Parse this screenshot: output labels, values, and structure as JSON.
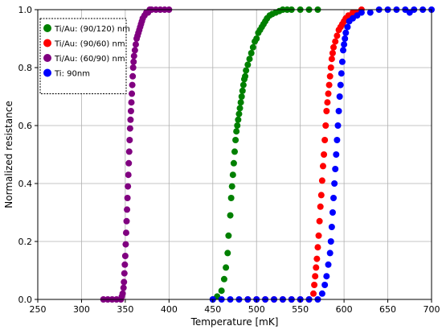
{
  "chart_data": {
    "type": "scatter",
    "xlabel": "Temperature [mK]",
    "ylabel": "Normalized resistance",
    "xlim": [
      250,
      700
    ],
    "ylim": [
      0,
      1.0
    ],
    "x_ticks": [
      "250",
      "300",
      "350",
      "400",
      "450",
      "500",
      "550",
      "600",
      "650",
      "700"
    ],
    "y_ticks": [
      "0.0",
      "0.2",
      "0.4",
      "0.6",
      "0.8",
      "1.0"
    ],
    "grid": true,
    "legend_position": "top-left",
    "series": [
      {
        "name": "Ti/Au: (90/120) nm",
        "color": "#008000",
        "x": [
          450,
          455,
          460,
          463,
          465,
          467,
          468,
          470,
          471,
          472,
          473,
          474,
          475,
          476,
          477,
          478,
          479,
          480,
          481,
          482,
          483,
          484,
          485,
          486,
          487,
          488,
          490,
          492,
          494,
          496,
          498,
          500,
          502,
          504,
          506,
          508,
          510,
          512,
          515,
          518,
          522,
          526,
          530,
          535,
          540,
          550,
          560,
          570
        ],
        "y": [
          0.0,
          0.01,
          0.03,
          0.07,
          0.11,
          0.16,
          0.22,
          0.29,
          0.35,
          0.39,
          0.43,
          0.47,
          0.51,
          0.55,
          0.58,
          0.6,
          0.62,
          0.64,
          0.66,
          0.68,
          0.7,
          0.72,
          0.74,
          0.76,
          0.77,
          0.79,
          0.81,
          0.83,
          0.85,
          0.87,
          0.89,
          0.9,
          0.92,
          0.93,
          0.94,
          0.95,
          0.96,
          0.97,
          0.98,
          0.985,
          0.99,
          0.995,
          1.0,
          1.0,
          1.0,
          1.0,
          1.0,
          1.0
        ]
      },
      {
        "name": "Ti/Au: (90/60) nm",
        "color": "#ff0000",
        "x": [
          490,
          500,
          510,
          520,
          530,
          540,
          550,
          560,
          565,
          566,
          567,
          568,
          569,
          570,
          571,
          572,
          573,
          574,
          575,
          576,
          577,
          578,
          579,
          580,
          581,
          582,
          583,
          584,
          585,
          586,
          587,
          588,
          590,
          592,
          594,
          596,
          598,
          600,
          602,
          605,
          610,
          615,
          620
        ],
        "y": [
          0.0,
          0.0,
          0.0,
          0.0,
          0.0,
          0.0,
          0.0,
          0.0,
          0.02,
          0.05,
          0.08,
          0.11,
          0.14,
          0.18,
          0.22,
          0.27,
          0.32,
          0.36,
          0.41,
          0.46,
          0.5,
          0.55,
          0.6,
          0.65,
          0.68,
          0.71,
          0.74,
          0.77,
          0.8,
          0.83,
          0.85,
          0.87,
          0.89,
          0.91,
          0.93,
          0.94,
          0.95,
          0.96,
          0.97,
          0.98,
          0.99,
          0.99,
          1.0
        ]
      },
      {
        "name": "Ti/Au: (60/90) nm",
        "color": "#800080",
        "x": [
          325,
          330,
          335,
          340,
          345,
          346,
          347,
          348,
          348.5,
          349,
          349.5,
          350,
          350.5,
          351,
          351.5,
          352,
          352.5,
          353,
          353.5,
          354,
          354.5,
          355,
          355.5,
          356,
          356.5,
          357,
          357.5,
          358,
          358.5,
          359,
          359.5,
          360,
          361,
          362,
          363,
          364,
          365,
          366,
          367,
          368,
          369,
          370,
          372,
          374,
          376,
          378,
          380,
          385,
          390,
          395,
          400
        ],
        "y": [
          0.0,
          0.0,
          0.0,
          0.0,
          0.0,
          0.01,
          0.02,
          0.04,
          0.06,
          0.09,
          0.12,
          0.15,
          0.19,
          0.23,
          0.27,
          0.31,
          0.35,
          0.39,
          0.43,
          0.47,
          0.51,
          0.55,
          0.59,
          0.62,
          0.65,
          0.68,
          0.71,
          0.74,
          0.77,
          0.8,
          0.82,
          0.84,
          0.86,
          0.88,
          0.9,
          0.91,
          0.92,
          0.93,
          0.94,
          0.95,
          0.96,
          0.97,
          0.98,
          0.99,
          0.99,
          1.0,
          1.0,
          1.0,
          1.0,
          1.0,
          1.0
        ]
      },
      {
        "name": "Ti: 90nm",
        "color": "#0000ff",
        "x": [
          450,
          460,
          470,
          480,
          490,
          500,
          510,
          520,
          530,
          540,
          550,
          560,
          570,
          575,
          578,
          580,
          582,
          584,
          585,
          586,
          587,
          588,
          589,
          590,
          591,
          592,
          593,
          594,
          595,
          596,
          597,
          598,
          599,
          600,
          601,
          602,
          604,
          606,
          610,
          615,
          620,
          630,
          640,
          650,
          660,
          670,
          675,
          680,
          690,
          700
        ],
        "y": [
          0.0,
          0.0,
          0.0,
          0.0,
          0.0,
          0.0,
          0.0,
          0.0,
          0.0,
          0.0,
          0.0,
          0.0,
          0.0,
          0.02,
          0.05,
          0.08,
          0.12,
          0.16,
          0.2,
          0.25,
          0.3,
          0.35,
          0.4,
          0.45,
          0.5,
          0.55,
          0.6,
          0.65,
          0.7,
          0.74,
          0.78,
          0.82,
          0.86,
          0.88,
          0.9,
          0.92,
          0.94,
          0.96,
          0.97,
          0.98,
          0.99,
          0.99,
          1.0,
          1.0,
          1.0,
          1.0,
          0.99,
          1.0,
          1.0,
          1.0
        ]
      }
    ]
  }
}
